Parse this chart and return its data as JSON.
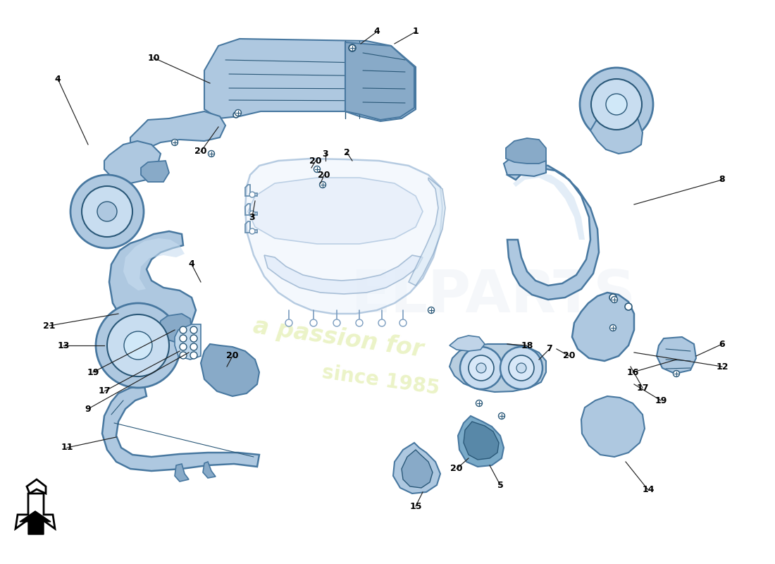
{
  "background_color": "#ffffff",
  "part_fill": "#aec8e0",
  "part_fill_dark": "#88aac8",
  "part_fill_light": "#c8ddf0",
  "part_stroke": "#4878a0",
  "part_stroke_dark": "#2a5878",
  "hvac_fill": "#e0ecf8",
  "hvac_stroke": "#6890b0",
  "watermark1": "a passion for",
  "watermark2": "since 1985",
  "wm_color": "#d8e890",
  "wm_alpha": 0.5,
  "label_fs": 9,
  "label_bold": true
}
